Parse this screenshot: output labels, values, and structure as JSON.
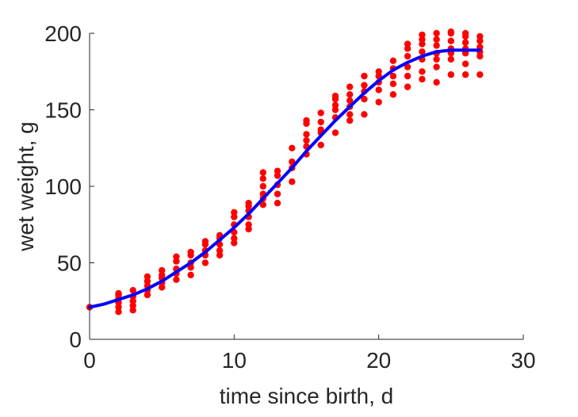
{
  "chart_data": {
    "type": "scatter",
    "title": "",
    "xlabel": "time since birth, d",
    "ylabel": "wet weight, g",
    "xlim": [
      0,
      30
    ],
    "ylim": [
      0,
      200
    ],
    "xticks": [
      0,
      10,
      20,
      30
    ],
    "yticks": [
      0,
      50,
      100,
      150,
      200
    ],
    "xtick_labels": [
      "0",
      "10",
      "20",
      "30"
    ],
    "ytick_labels": [
      "0",
      "50",
      "100",
      "150",
      "200"
    ],
    "grid": false,
    "legend": "none",
    "series": [
      {
        "kind": "points",
        "color": "#ff0000",
        "points": [
          [
            0,
            21
          ],
          [
            2,
            18
          ],
          [
            2,
            21
          ],
          [
            2,
            24
          ],
          [
            2,
            27
          ],
          [
            2,
            29
          ],
          [
            2,
            30
          ],
          [
            3,
            19
          ],
          [
            3,
            22
          ],
          [
            3,
            25
          ],
          [
            3,
            28
          ],
          [
            3,
            32
          ],
          [
            4,
            29
          ],
          [
            4,
            32
          ],
          [
            4,
            35
          ],
          [
            4,
            38
          ],
          [
            4,
            41
          ],
          [
            5,
            34
          ],
          [
            5,
            37
          ],
          [
            5,
            40
          ],
          [
            5,
            42
          ],
          [
            5,
            45
          ],
          [
            6,
            39
          ],
          [
            6,
            43
          ],
          [
            6,
            46
          ],
          [
            6,
            51
          ],
          [
            6,
            54
          ],
          [
            7,
            42
          ],
          [
            7,
            47
          ],
          [
            7,
            50
          ],
          [
            7,
            55
          ],
          [
            7,
            57
          ],
          [
            8,
            50
          ],
          [
            8,
            55
          ],
          [
            8,
            58
          ],
          [
            8,
            62
          ],
          [
            8,
            64
          ],
          [
            9,
            55
          ],
          [
            9,
            58
          ],
          [
            9,
            62
          ],
          [
            9,
            66
          ],
          [
            9,
            68
          ],
          [
            10,
            63
          ],
          [
            10,
            66
          ],
          [
            10,
            70
          ],
          [
            10,
            75
          ],
          [
            10,
            80
          ],
          [
            10,
            83
          ],
          [
            11,
            72
          ],
          [
            11,
            75
          ],
          [
            11,
            80
          ],
          [
            11,
            84
          ],
          [
            11,
            87
          ],
          [
            11,
            89
          ],
          [
            12,
            88
          ],
          [
            12,
            92
          ],
          [
            12,
            95
          ],
          [
            12,
            100
          ],
          [
            12,
            105
          ],
          [
            12,
            109
          ],
          [
            13,
            89
          ],
          [
            13,
            95
          ],
          [
            13,
            101
          ],
          [
            13,
            107
          ],
          [
            13,
            110
          ],
          [
            14,
            103
          ],
          [
            14,
            112
          ],
          [
            14,
            116
          ],
          [
            14,
            125
          ],
          [
            15,
            121
          ],
          [
            15,
            126
          ],
          [
            15,
            130
          ],
          [
            15,
            134
          ],
          [
            15,
            141
          ],
          [
            15,
            143
          ],
          [
            16,
            127
          ],
          [
            16,
            135
          ],
          [
            16,
            137
          ],
          [
            16,
            142
          ],
          [
            16,
            148
          ],
          [
            17,
            135
          ],
          [
            17,
            145
          ],
          [
            17,
            150
          ],
          [
            17,
            153
          ],
          [
            17,
            157
          ],
          [
            17,
            159
          ],
          [
            18,
            143
          ],
          [
            18,
            147
          ],
          [
            18,
            152
          ],
          [
            18,
            156
          ],
          [
            18,
            160
          ],
          [
            18,
            165
          ],
          [
            19,
            147
          ],
          [
            19,
            157
          ],
          [
            19,
            162
          ],
          [
            19,
            166
          ],
          [
            19,
            172
          ],
          [
            20,
            155
          ],
          [
            20,
            163
          ],
          [
            20,
            168
          ],
          [
            20,
            172
          ],
          [
            20,
            175
          ],
          [
            21,
            160
          ],
          [
            21,
            167
          ],
          [
            21,
            172
          ],
          [
            21,
            177
          ],
          [
            21,
            182
          ],
          [
            22,
            165
          ],
          [
            22,
            172
          ],
          [
            22,
            178
          ],
          [
            22,
            185
          ],
          [
            22,
            190
          ],
          [
            22,
            193
          ],
          [
            23,
            170
          ],
          [
            23,
            175
          ],
          [
            23,
            183
          ],
          [
            23,
            188
          ],
          [
            23,
            193
          ],
          [
            23,
            196
          ],
          [
            23,
            199
          ],
          [
            24,
            168
          ],
          [
            24,
            178
          ],
          [
            24,
            183
          ],
          [
            24,
            187
          ],
          [
            24,
            192
          ],
          [
            24,
            196
          ],
          [
            24,
            200
          ],
          [
            25,
            173
          ],
          [
            25,
            183
          ],
          [
            25,
            187
          ],
          [
            25,
            190
          ],
          [
            25,
            195
          ],
          [
            25,
            200
          ],
          [
            25,
            201
          ],
          [
            26,
            173
          ],
          [
            26,
            180
          ],
          [
            26,
            187
          ],
          [
            26,
            190
          ],
          [
            26,
            194
          ],
          [
            26,
            198
          ],
          [
            26,
            200
          ],
          [
            27,
            173
          ],
          [
            27,
            185
          ],
          [
            27,
            188
          ],
          [
            27,
            191
          ],
          [
            27,
            195
          ],
          [
            27,
            198
          ]
        ]
      },
      {
        "kind": "curve",
        "color": "#0000ff",
        "x": [
          0,
          1,
          2,
          3,
          4,
          5,
          6,
          7,
          8,
          9,
          10,
          11,
          12,
          13,
          14,
          15,
          16,
          17,
          18,
          19,
          20,
          21,
          22,
          23,
          24,
          25,
          26,
          27
        ],
        "y": [
          21,
          23,
          26,
          29,
          33,
          38,
          44,
          50,
          57,
          65,
          73,
          82,
          92,
          102,
          112,
          123,
          133,
          143,
          152,
          161,
          169,
          176,
          181,
          185,
          188,
          189,
          189,
          189
        ]
      }
    ]
  }
}
